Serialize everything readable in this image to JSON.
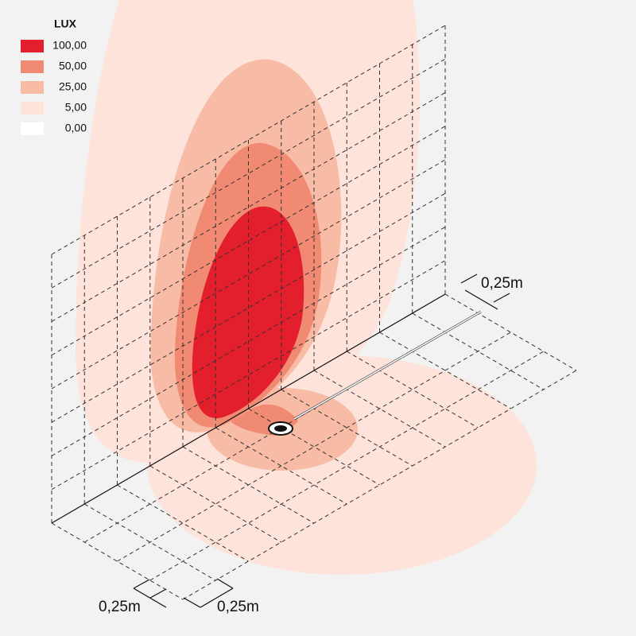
{
  "legend": {
    "title": "LUX",
    "items": [
      {
        "label": "100,00",
        "color": "#e31e2d"
      },
      {
        "label": "50,00",
        "color": "#f18a72"
      },
      {
        "label": "25,00",
        "color": "#f7bba6"
      },
      {
        "label": "5,00",
        "color": "#fde3da"
      },
      {
        "label": "0,00",
        "color": "#ffffff"
      }
    ]
  },
  "dimensions": {
    "wall": "0,25m",
    "floor_left": "0,25m",
    "floor_right": "0,25m"
  }
}
